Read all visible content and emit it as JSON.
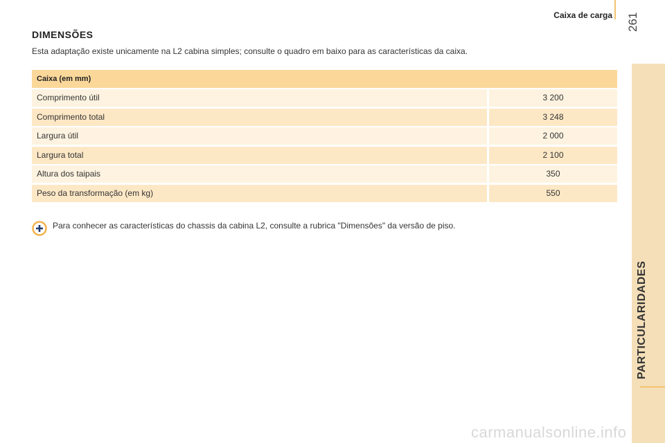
{
  "header": {
    "section": "Caixa de carga",
    "page_number": "261"
  },
  "sidebar": {
    "chapter": "PARTICULARIDADES"
  },
  "content": {
    "title": "DIMENSÕES",
    "intro": "Esta adaptação existe unicamente na L2 cabina simples; consulte o quadro em baixo para as características da caixa.",
    "table": {
      "header": "Caixa (em mm)",
      "rows": [
        [
          "Comprimento útil",
          "3 200"
        ],
        [
          "Comprimento total",
          "3 248"
        ],
        [
          "Largura útil",
          "2 000"
        ],
        [
          "Largura total",
          "2 100"
        ],
        [
          "Altura dos taipais",
          "350"
        ],
        [
          "Peso da transformação (em kg)",
          "550"
        ]
      ]
    },
    "note": "Para conhecer as características do chassis da cabina L2, consulte a rubrica \"Dimensões\" da versão de piso."
  },
  "watermark": "carmanualsonline.info"
}
